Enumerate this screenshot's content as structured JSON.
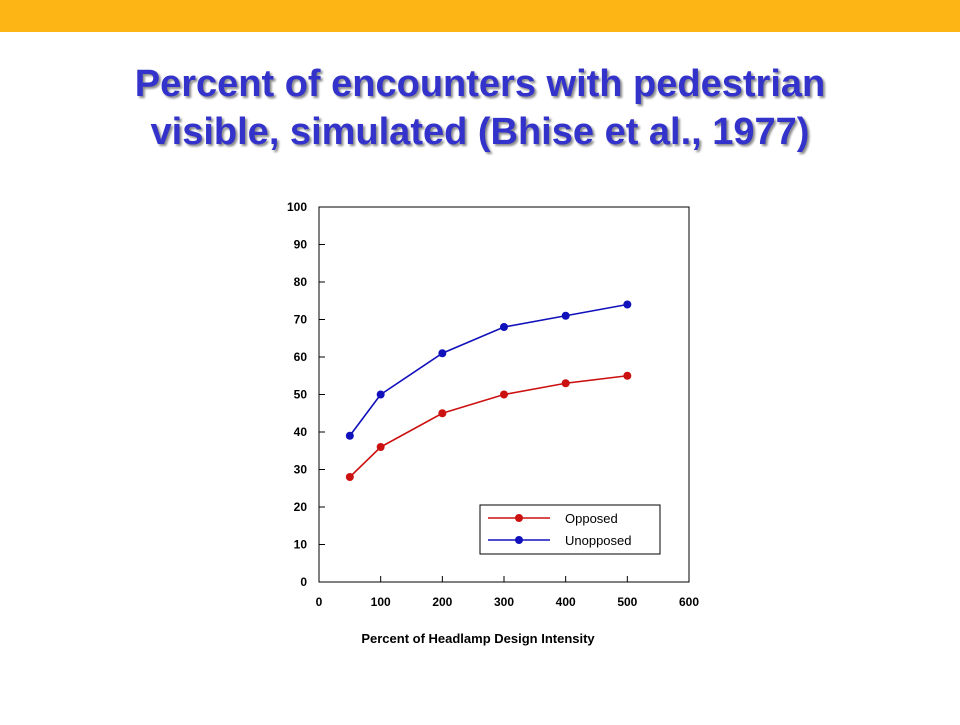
{
  "slide": {
    "title_line1": "Percent of encounters with pedestrian",
    "title_line2": "visible, simulated (Bhise et al., 1977)",
    "band_color": "#FDB515",
    "title_color": "#3333CC"
  },
  "chart_data": {
    "type": "line",
    "title": "",
    "xlabel": "Percent of Headlamp Design Intensity",
    "ylabel": "",
    "xlim": [
      0,
      600
    ],
    "ylim": [
      0,
      100
    ],
    "xticks": [
      0,
      100,
      200,
      300,
      400,
      500,
      600
    ],
    "yticks": [
      0,
      10,
      20,
      30,
      40,
      50,
      60,
      70,
      80,
      90,
      100
    ],
    "x": [
      50,
      100,
      200,
      300,
      400,
      500
    ],
    "grid": false,
    "legend_position": "bottom-right",
    "series": [
      {
        "name": "Opposed",
        "color": "#CC1111",
        "values": [
          28,
          36,
          45,
          50,
          53,
          55
        ]
      },
      {
        "name": "Unopposed",
        "color": "#1111BB",
        "values": [
          39,
          50,
          61,
          68,
          71,
          74
        ]
      }
    ]
  }
}
